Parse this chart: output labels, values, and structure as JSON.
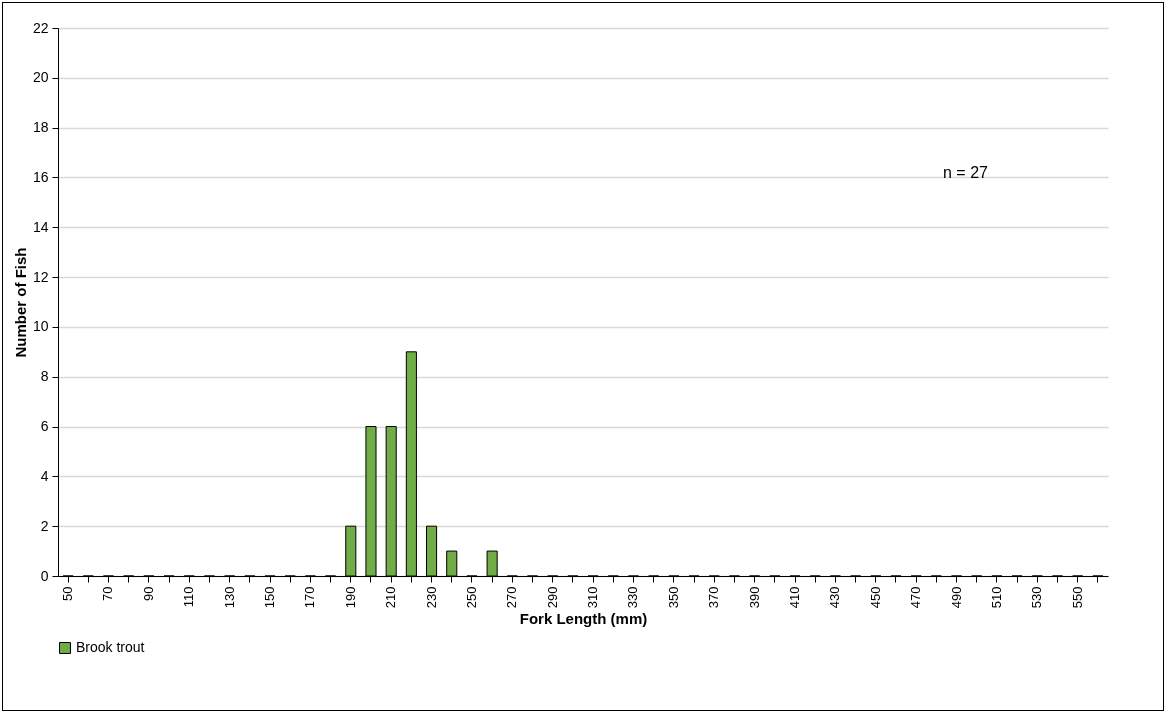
{
  "chart_data": {
    "type": "bar",
    "xlabel": "Fork Length (mm)",
    "ylabel": "Number of Fish",
    "categories": [
      "50",
      null,
      "70",
      null,
      "90",
      null,
      "110",
      null,
      "130",
      null,
      "150",
      null,
      "170",
      null,
      "190",
      null,
      "210",
      null,
      "230",
      null,
      "250",
      null,
      "270",
      null,
      "290",
      null,
      "310",
      null,
      "330",
      null,
      "350",
      null,
      "370",
      null,
      "390",
      null,
      "410",
      null,
      "430",
      null,
      "450",
      null,
      "470",
      null,
      "490",
      null,
      "510",
      null,
      "530",
      null,
      "550",
      null
    ],
    "series": [
      {
        "name": "Brook trout",
        "color": "#70ad47",
        "values": [
          0,
          0,
          0,
          0,
          0,
          0,
          0,
          0,
          0,
          0,
          0,
          0,
          0,
          0,
          2,
          6,
          6,
          9,
          2,
          1,
          0,
          1,
          0,
          0,
          0,
          0,
          0,
          0,
          0,
          0,
          0,
          0,
          0,
          0,
          0,
          0,
          0,
          0,
          0,
          0,
          0,
          0,
          0,
          0,
          0,
          0,
          0,
          0,
          0,
          0,
          0,
          0
        ]
      }
    ],
    "ylim": [
      0,
      22
    ],
    "yticks": [
      0,
      2,
      4,
      6,
      8,
      10,
      12,
      14,
      16,
      18,
      20,
      22
    ],
    "grid": "y",
    "legend": "bottom",
    "annotations": [
      "n = 27"
    ]
  }
}
